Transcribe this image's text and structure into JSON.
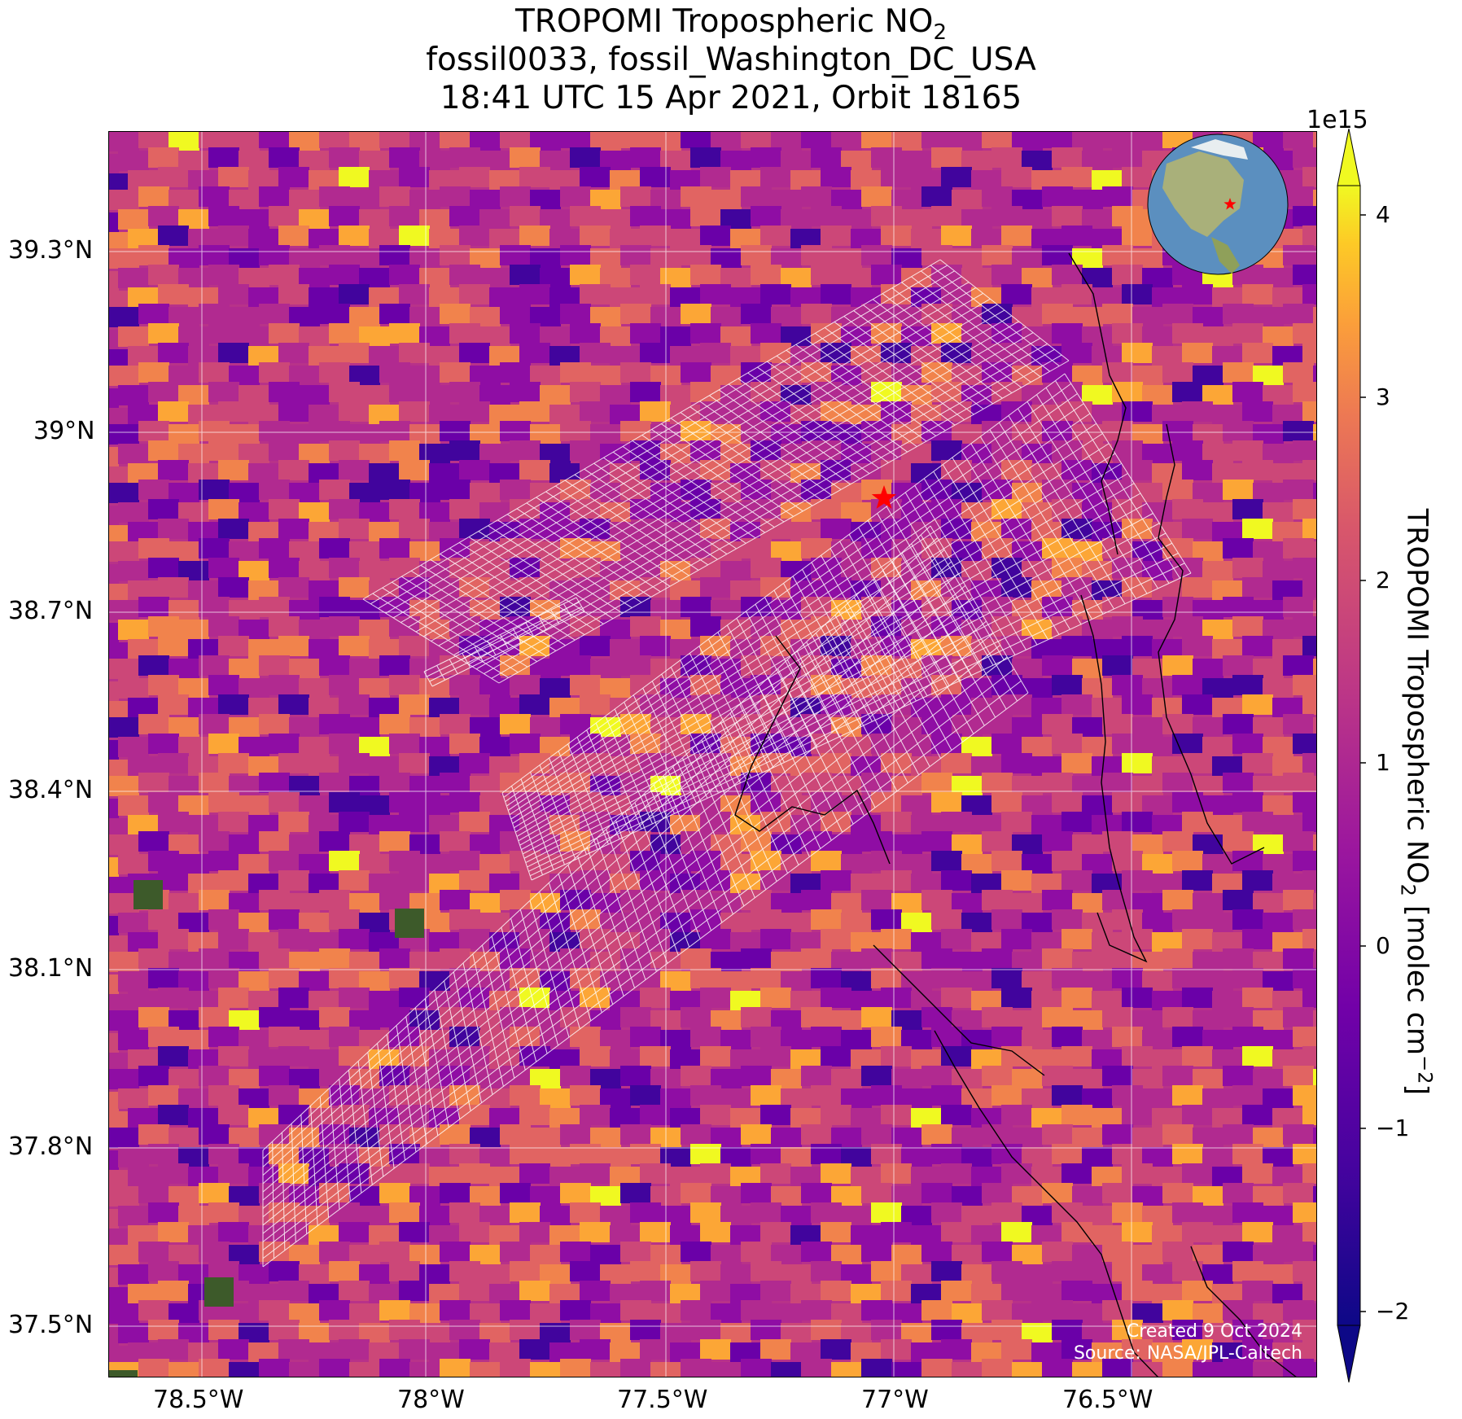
{
  "title": {
    "line1": "TROPOMI Tropospheric NO",
    "line1_sub": "2",
    "line2": "fossil0033, fossil_Washington_DC_USA",
    "line3": "18:41 UTC 15 Apr 2021, Orbit 18165"
  },
  "map": {
    "lat_ticks": [
      "39.3°N",
      "39°N",
      "38.7°N",
      "38.4°N",
      "38.1°N",
      "37.8°N",
      "37.5°N"
    ],
    "lon_ticks": [
      "78.5°W",
      "78°W",
      "77.5°W",
      "77°W",
      "76.5°W"
    ],
    "target_marker": "red-star",
    "credit_line1": "Created 9 Oct 2024",
    "credit_line2": "Source: NASA/JPL-Caltech"
  },
  "colorbar": {
    "scale_exponent": "1e15",
    "ticks": [
      "4",
      "3",
      "2",
      "1",
      "0",
      "−1",
      "−2"
    ],
    "label_main": "TROPOMI Tropospheric NO",
    "label_sub": "2",
    "label_units": " [molec cm",
    "label_exp": "−2",
    "label_end": "]",
    "range": [
      -2,
      4
    ],
    "colormap": "plasma",
    "extend": "both"
  },
  "colors": {
    "marker": "#ff0000",
    "grid": "#ffffff",
    "coast": "#000000",
    "footprint": "#ffffff"
  }
}
